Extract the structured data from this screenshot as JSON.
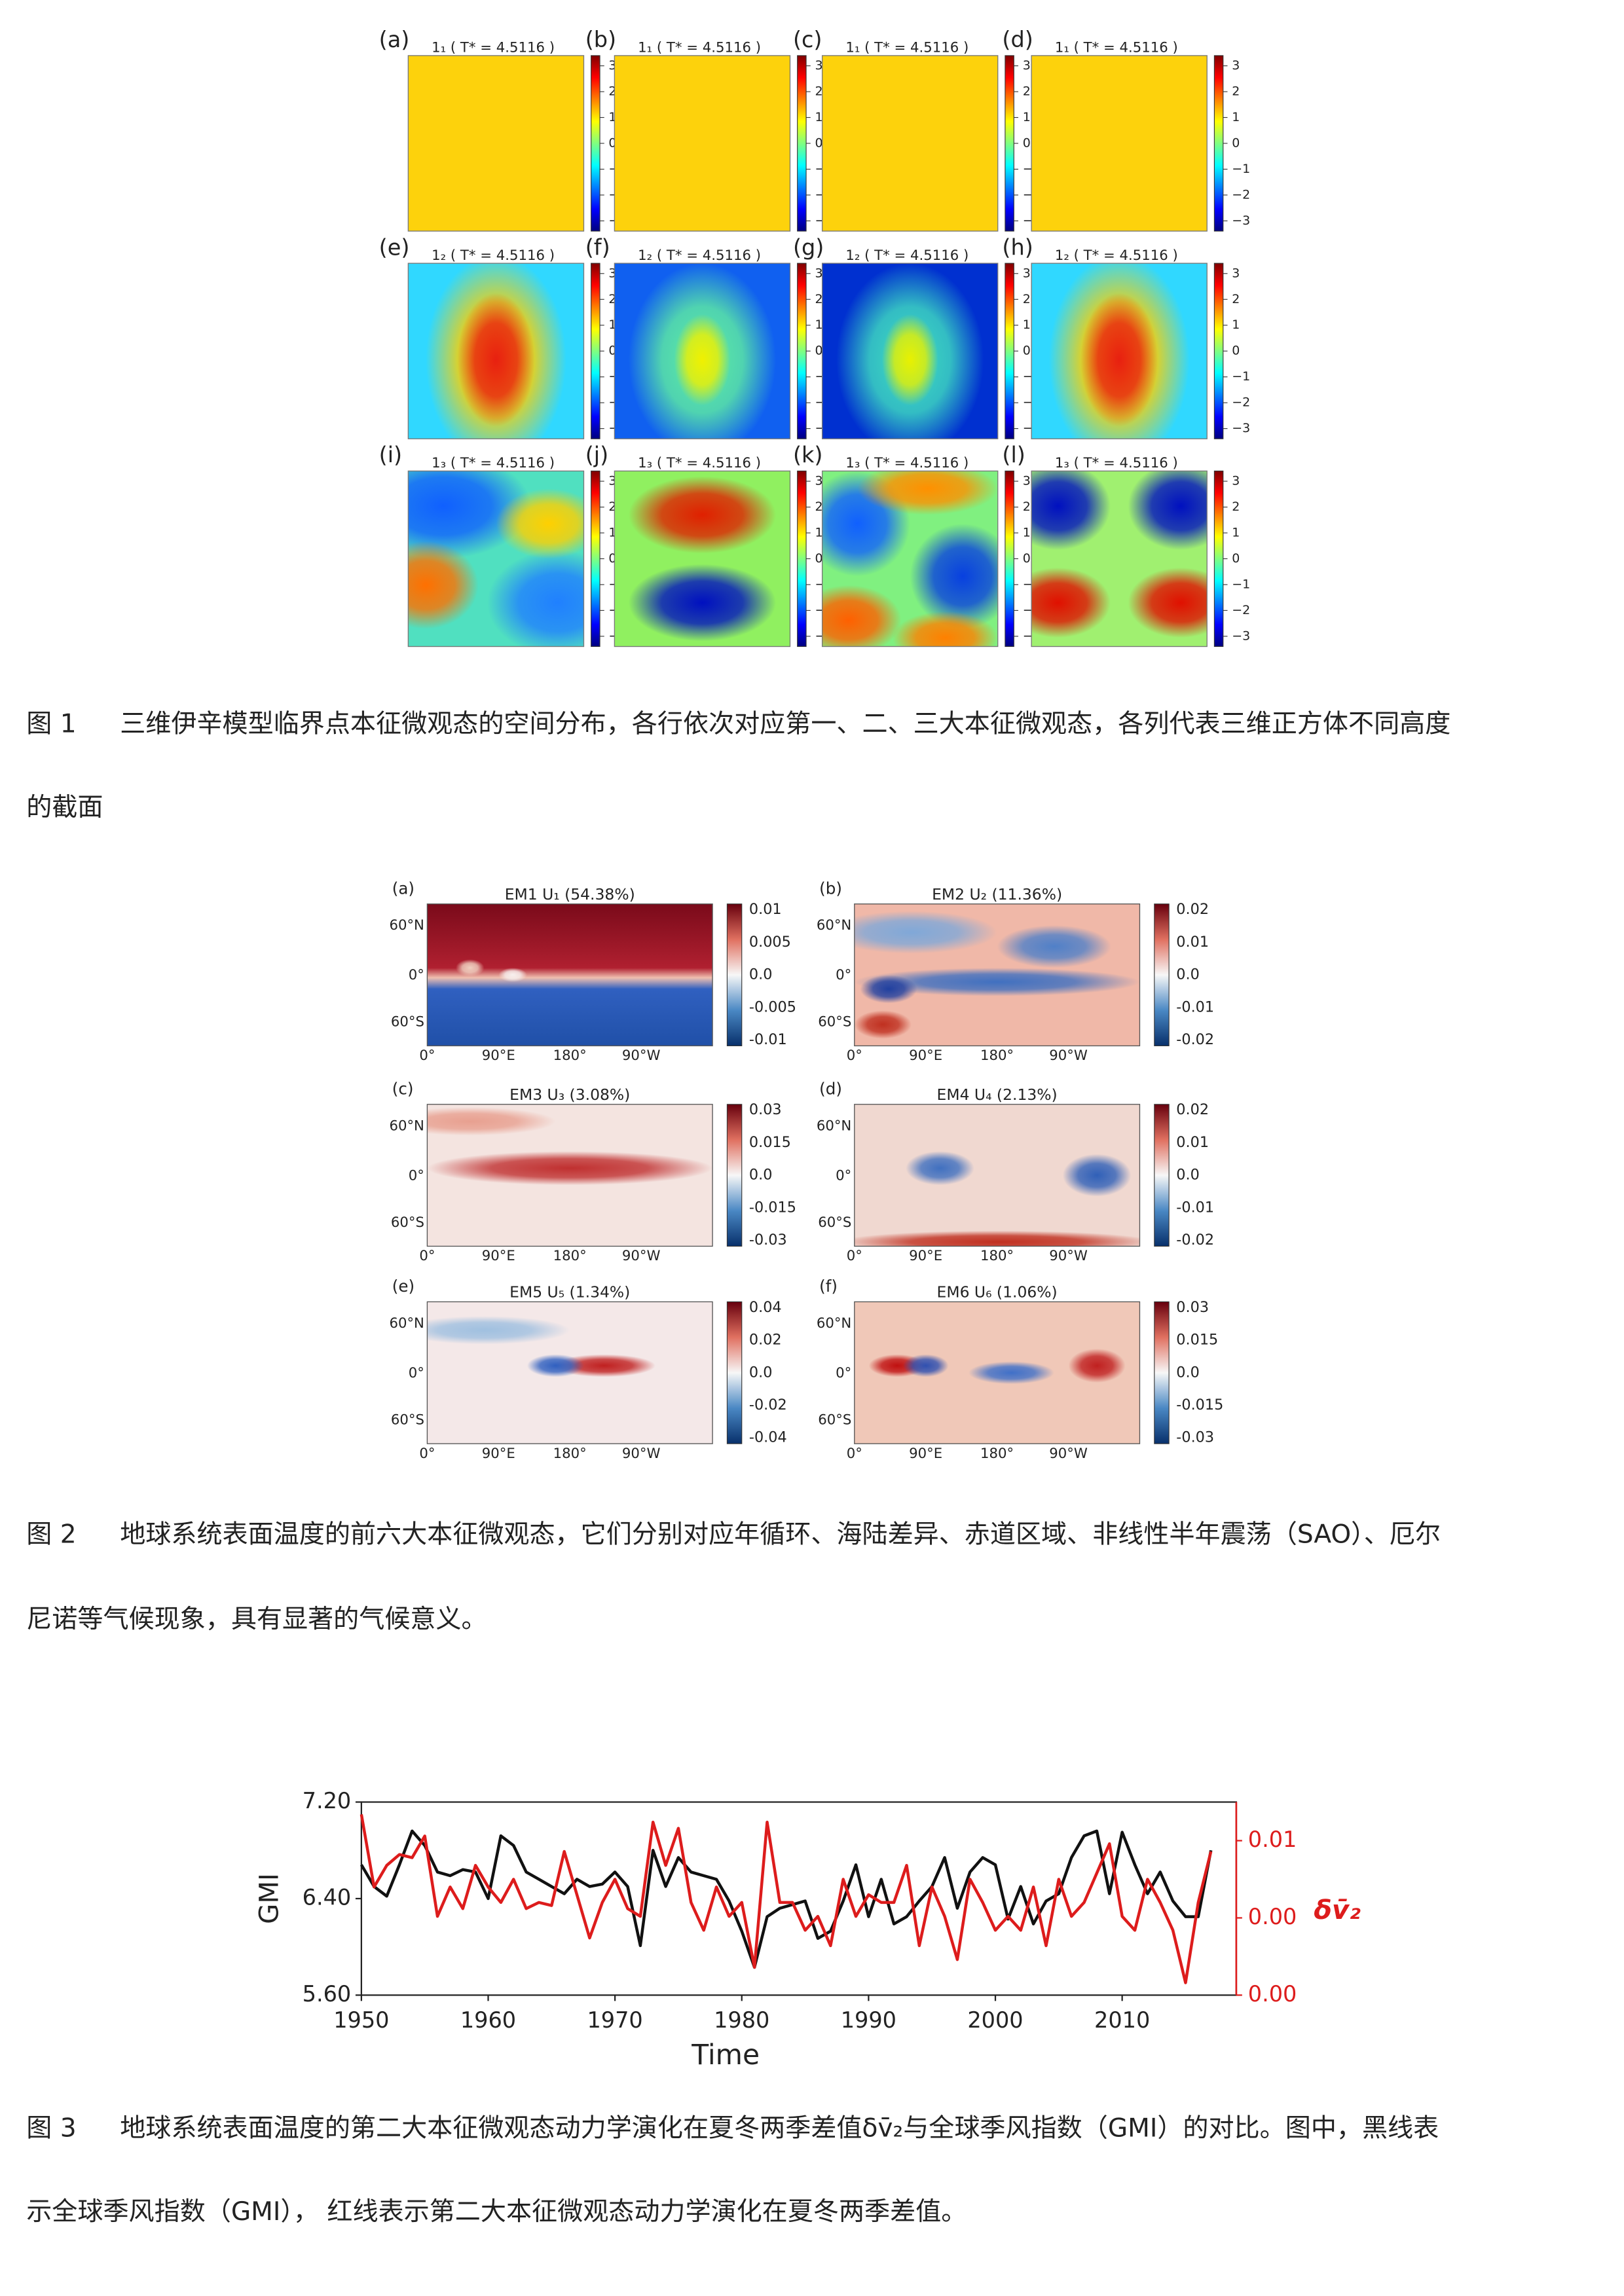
{
  "figure1": {
    "panels": [
      {
        "label": "(a)",
        "title": "1₁ ( T* = 4.5116 )"
      },
      {
        "label": "(b)",
        "title": "1₁ ( T* = 4.5116 )"
      },
      {
        "label": "(c)",
        "title": "1₁ ( T* = 4.5116 )"
      },
      {
        "label": "(d)",
        "title": "1₁ ( T* = 4.5116 )"
      },
      {
        "label": "(e)",
        "title": "1₂ ( T* = 4.5116 )"
      },
      {
        "label": "(f)",
        "title": "1₂ ( T* = 4.5116 )"
      },
      {
        "label": "(g)",
        "title": "1₂ ( T* = 4.5116 )"
      },
      {
        "label": "(h)",
        "title": "1₂ ( T* = 4.5116 )"
      },
      {
        "label": "(i)",
        "title": "1₃ ( T* = 4.5116 )"
      },
      {
        "label": "(j)",
        "title": "1₃ ( T* = 4.5116 )"
      },
      {
        "label": "(k)",
        "title": "1₃ ( T* = 4.5116 )"
      },
      {
        "label": "(l)",
        "title": "1₃ ( T* = 4.5116 )"
      }
    ],
    "colorbar_ticks": [
      "3",
      "2",
      "1",
      "0",
      "−1",
      "−2",
      "−3"
    ],
    "caption_label": "图 1",
    "caption_lines": [
      "三维伊辛模型临界点本征微观态的空间分布，各行依次对应第一、二、三大本征微观态，各列代表三维正方体不同高度",
      "的截面"
    ]
  },
  "figure2": {
    "panels": [
      {
        "label": "(a)",
        "title": "EM1 U₁ (54.38%)",
        "colorbar_ticks": [
          "0.01",
          "0.005",
          "0.0",
          "-0.005",
          "-0.01"
        ]
      },
      {
        "label": "(b)",
        "title": "EM2 U₂ (11.36%)",
        "colorbar_ticks": [
          "0.02",
          "0.01",
          "0.0",
          "-0.01",
          "-0.02"
        ]
      },
      {
        "label": "(c)",
        "title": "EM3 U₃ (3.08%)",
        "colorbar_ticks": [
          "0.03",
          "0.015",
          "0.0",
          "-0.015",
          "-0.03"
        ]
      },
      {
        "label": "(d)",
        "title": "EM4 U₄ (2.13%)",
        "colorbar_ticks": [
          "0.02",
          "0.01",
          "0.0",
          "-0.01",
          "-0.02"
        ]
      },
      {
        "label": "(e)",
        "title": "EM5 U₅ (1.34%)",
        "colorbar_ticks": [
          "0.04",
          "0.02",
          "0.0",
          "-0.02",
          "-0.04"
        ]
      },
      {
        "label": "(f)",
        "title": "EM6 U₆ (1.06%)",
        "colorbar_ticks": [
          "0.03",
          "0.015",
          "0.0",
          "-0.015",
          "-0.03"
        ]
      }
    ],
    "lat_labels": [
      "60°N",
      "0°",
      "60°S"
    ],
    "lon_labels": [
      "0°",
      "90°E",
      "180°",
      "90°W"
    ],
    "caption_label": "图 2",
    "caption_lines": [
      "地球系统表面温度的前六大本征微观态，它们分别对应年循环、海陆差异、赤道区域、非线性半年震荡（SAO）、厄尔",
      "尼诺等气候现象，具有显著的气候意义。"
    ]
  },
  "chart_data": {
    "type": "line",
    "x_label": "Time",
    "y_label": "GMI",
    "y2_label": "δv̄₂",
    "x": [
      1950,
      1951,
      1952,
      1953,
      1954,
      1955,
      1956,
      1957,
      1958,
      1959,
      1960,
      1961,
      1962,
      1963,
      1964,
      1965,
      1966,
      1967,
      1968,
      1969,
      1970,
      1971,
      1972,
      1973,
      1974,
      1975,
      1976,
      1977,
      1978,
      1979,
      1980,
      1981,
      1982,
      1983,
      1984,
      1985,
      1986,
      1987,
      1988,
      1989,
      1990,
      1991,
      1992,
      1993,
      1994,
      1995,
      1996,
      1997,
      1998,
      1999,
      2000,
      2001,
      2002,
      2003,
      2004,
      2005,
      2006,
      2007,
      2008,
      2009,
      2010,
      2011,
      2012,
      2013,
      2014,
      2015,
      2016,
      2017
    ],
    "series": [
      {
        "name": "GMI",
        "color": "#111111",
        "values": [
          6.68,
          6.5,
          6.42,
          6.68,
          6.96,
          6.84,
          6.62,
          6.59,
          6.64,
          6.62,
          6.4,
          6.92,
          6.84,
          6.62,
          6.56,
          6.5,
          6.44,
          6.56,
          6.5,
          6.52,
          6.62,
          6.5,
          6.01,
          6.8,
          6.5,
          6.74,
          6.62,
          6.59,
          6.56,
          6.38,
          6.13,
          5.83,
          6.25,
          6.32,
          6.35,
          6.38,
          6.07,
          6.13,
          6.38,
          6.68,
          6.25,
          6.56,
          6.19,
          6.25,
          6.38,
          6.5,
          6.74,
          6.32,
          6.62,
          6.74,
          6.68,
          6.23,
          6.5,
          6.19,
          6.38,
          6.44,
          6.74,
          6.92,
          6.96,
          6.44,
          6.95,
          6.68,
          6.44,
          6.62,
          6.38,
          6.25,
          6.25,
          6.8
        ]
      },
      {
        "name": "δv̄₂",
        "color": "#dd1c1c",
        "axis": "y2",
        "values": [
          0.0067,
          0.002,
          0.0034,
          0.0041,
          0.0039,
          0.0053,
          0.0001,
          0.002,
          0.0006,
          0.0034,
          0.002,
          0.001,
          0.0025,
          0.0006,
          0.001,
          0.0008,
          0.0043,
          0.0015,
          -0.0013,
          0.001,
          0.0025,
          0.0006,
          0.0001,
          0.0062,
          0.0034,
          0.0058,
          0.001,
          -0.0008,
          0.002,
          0.0001,
          0.001,
          -0.0032,
          0.0062,
          0.001,
          0.001,
          -0.0008,
          0.0001,
          -0.0018,
          0.0025,
          0.0001,
          0.0015,
          0.001,
          0.001,
          0.0034,
          -0.0018,
          0.002,
          0.0001,
          -0.0027,
          0.0025,
          0.001,
          -0.0008,
          0.0001,
          -0.0008,
          0.002,
          -0.0018,
          0.0025,
          0.0001,
          0.001,
          0.0029,
          0.0048,
          0.0001,
          -0.0008,
          0.0025,
          0.001,
          -0.0008,
          -0.0042,
          0.001,
          0.0043
        ]
      }
    ],
    "xlim": [
      1950,
      2019
    ],
    "xticks": [
      1950,
      1960,
      1970,
      1980,
      1990,
      2000,
      2010
    ],
    "ylim": [
      5.6,
      7.2
    ],
    "yticks": [
      {
        "value": 7.2,
        "label": "7.20"
      },
      {
        "value": 6.4,
        "label": "6.40"
      },
      {
        "value": 5.6,
        "label": "5.60"
      }
    ],
    "y2lim": [
      -0.005,
      0.0075
    ],
    "y2ticks": [
      {
        "value": 0.005,
        "label": "0.01"
      },
      {
        "value": 0,
        "label": "0.00"
      },
      {
        "value": -0.005,
        "label": "0.00"
      }
    ],
    "y2_color": "#dd1c1c"
  },
  "figure3": {
    "caption_label": "图 3",
    "caption_lines": [
      "地球系统表面温度的第二大本征微观态动力学演化在夏冬两季差值δv̄₂与全球季风指数（GMI）的对比。图中，黑线表",
      "示全球季风指数（GMI）， 红线表示第二大本征微观态动力学演化在夏冬两季差值。"
    ]
  }
}
